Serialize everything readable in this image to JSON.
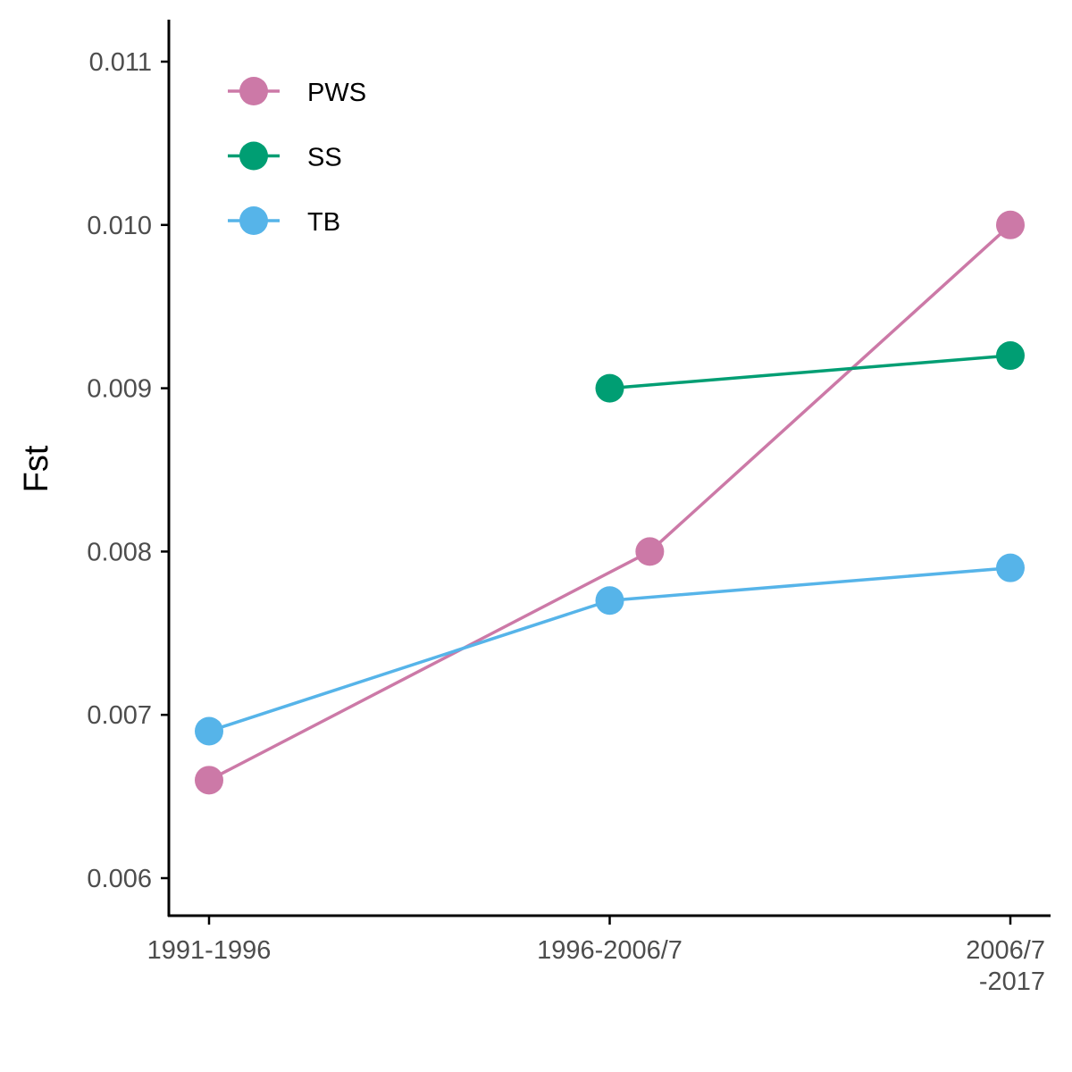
{
  "chart_data": {
    "type": "line",
    "categories": [
      "1991-1996",
      "1996-2006/7",
      "2006/7\n-2017"
    ],
    "ylabel": "Fst",
    "xlabel": "",
    "ylim": [
      0.00589,
      0.01121
    ],
    "yticks": [
      "0.006",
      "0.007",
      "0.008",
      "0.009",
      "0.010",
      "0.011"
    ],
    "legend_position": "top-left inside",
    "grid": false,
    "series": [
      {
        "name": "PWS",
        "color": "#CC79A7",
        "points": [
          [
            0,
            0.0066
          ],
          [
            1.1,
            0.008
          ],
          [
            2,
            0.01
          ]
        ]
      },
      {
        "name": "SS",
        "color": "#009E73",
        "points": [
          [
            1,
            0.009
          ],
          [
            2,
            0.0092
          ]
        ]
      },
      {
        "name": "TB",
        "color": "#56B4E9",
        "points": [
          [
            0,
            0.0069
          ],
          [
            1,
            0.0077
          ],
          [
            2,
            0.0079
          ]
        ]
      }
    ]
  }
}
